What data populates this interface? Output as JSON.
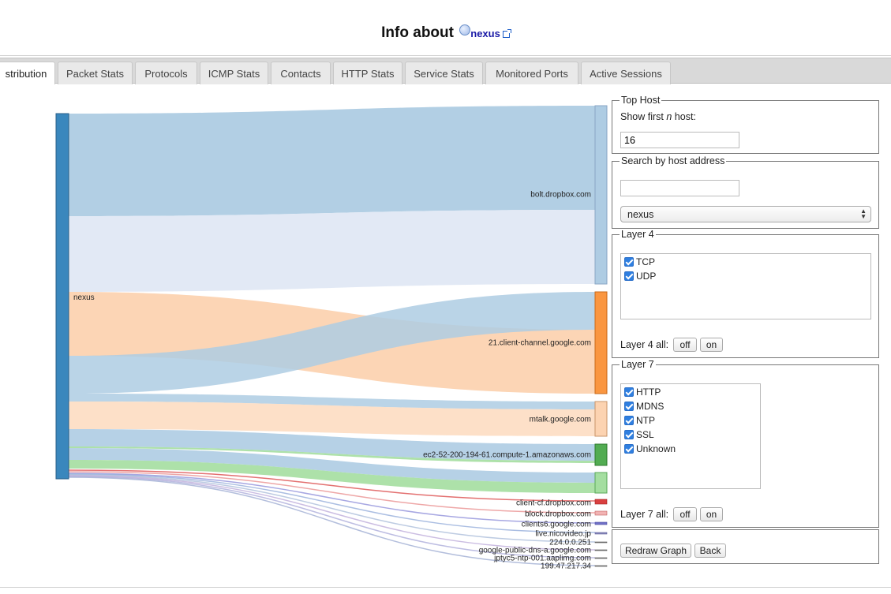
{
  "header": {
    "title": "Info about",
    "host": "nexus"
  },
  "tabs": [
    "stribution",
    "Packet Stats",
    "Protocols",
    "ICMP Stats",
    "Contacts",
    "HTTP Stats",
    "Service Stats",
    "Monitored Ports",
    "Active Sessions"
  ],
  "sankey": {
    "source": "nexus",
    "targets": [
      "bolt.dropbox.com",
      "21.client-channel.google.com",
      "mtalk.google.com",
      "ec2-52-200-194-61.compute-1.amazonaws.com",
      "",
      "client-cf.dropbox.com",
      "block.dropbox.com",
      "clients6.google.com",
      "live.nicovideo.jp",
      "224.0.0.251",
      "google-public-dns-a.google.com",
      "jptyc5-ntp-001.aaplimg.com",
      "199.47.217.34"
    ],
    "colors": {
      "source_bar": "#3a87bd",
      "blue": "#aeccE3",
      "light_blue": "#e0e8f4",
      "orange": "#fa9640",
      "light_orange": "#fcd3b1",
      "green": "#52ac52",
      "light_green": "#a4dea0",
      "red": "#d94040"
    }
  },
  "top_host": {
    "legend": "Top Host",
    "label_prefix": "Show first ",
    "label_n": "n",
    "label_suffix": " host:",
    "value": "16"
  },
  "search": {
    "legend": "Search by host address",
    "value": "",
    "select_value": "nexus"
  },
  "layer4": {
    "legend": "Layer 4",
    "items": [
      "TCP",
      "UDP"
    ],
    "all_label": "Layer 4 all:",
    "off": "off",
    "on": "on"
  },
  "layer7": {
    "legend": "Layer 7",
    "items": [
      "HTTP",
      "MDNS",
      "NTP",
      "SSL",
      "Unknown"
    ],
    "all_label": "Layer 7 all:",
    "off": "off",
    "on": "on"
  },
  "actions": {
    "redraw": "Redraw Graph",
    "back": "Back"
  }
}
